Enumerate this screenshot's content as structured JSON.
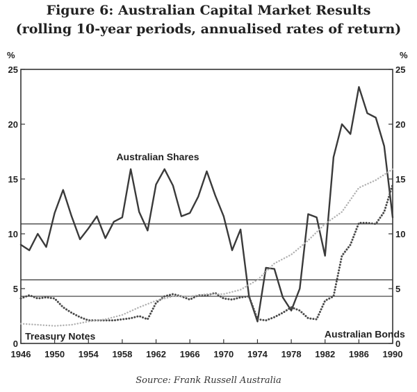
{
  "title": "Figure 6: Australian Capital Market Results",
  "subtitle": "(rolling 10-year periods, annualised rates of return)",
  "source": "Source: Frank Russell Australia",
  "chart_data": {
    "type": "line",
    "x_ticks": [
      "1946",
      "1950",
      "1954",
      "1958",
      "1962",
      "1966",
      "1970",
      "1974",
      "1978",
      "1982",
      "1986",
      "1990"
    ],
    "y_ticks": [
      "0",
      "5",
      "10",
      "15",
      "20",
      "25"
    ],
    "y_unit_left": "%",
    "y_unit_right": "%",
    "xlim": [
      1946,
      1990
    ],
    "ylim": [
      0,
      25
    ],
    "grid": false,
    "reference_lines": [
      10.9,
      5.8,
      4.3
    ],
    "annotations": [
      {
        "text": "Australian Shares",
        "x": 1962.2,
        "y": 16.7
      },
      {
        "text": "Australian Bonds",
        "x": 1986.7,
        "y": 0.55
      },
      {
        "text": "Treasury Notes",
        "x": 1946.5,
        "y": 0.35
      }
    ],
    "series": [
      {
        "name": "Australian Shares",
        "style": "solid",
        "color": "#3a3a3a",
        "x": [
          1946,
          1947,
          1948,
          1949,
          1950,
          1951,
          1952,
          1953,
          1954,
          1955,
          1956,
          1957,
          1958,
          1959,
          1960,
          1961,
          1962,
          1963,
          1964,
          1965,
          1966,
          1967,
          1968,
          1969,
          1970,
          1971,
          1972,
          1973,
          1974,
          1975,
          1976,
          1977,
          1978,
          1979,
          1980,
          1981,
          1982,
          1983,
          1984,
          1985,
          1986,
          1987,
          1988,
          1989,
          1990
        ],
        "values": [
          9.0,
          8.5,
          10.0,
          8.8,
          11.9,
          14.0,
          11.6,
          9.5,
          10.5,
          11.6,
          9.6,
          11.1,
          11.5,
          15.9,
          12.0,
          10.3,
          14.5,
          15.9,
          14.4,
          11.6,
          11.9,
          13.4,
          15.7,
          13.5,
          11.6,
          8.5,
          10.4,
          4.3,
          2.0,
          6.9,
          6.8,
          4.2,
          3.0,
          5.0,
          11.8,
          11.5,
          8.0,
          17.0,
          20.0,
          19.1,
          23.4,
          21.0,
          20.6,
          18.0,
          11.5
        ]
      },
      {
        "name": "Australian Bonds",
        "style": "dotted",
        "color": "#4a4a4a",
        "x": [
          1946,
          1947,
          1948,
          1949,
          1950,
          1951,
          1952,
          1953,
          1954,
          1955,
          1956,
          1957,
          1958,
          1959,
          1960,
          1961,
          1962,
          1963,
          1964,
          1965,
          1966,
          1967,
          1968,
          1969,
          1970,
          1971,
          1972,
          1973,
          1974,
          1975,
          1976,
          1977,
          1978,
          1979,
          1980,
          1981,
          1982,
          1983,
          1984,
          1985,
          1986,
          1987,
          1988,
          1989,
          1990
        ],
        "values": [
          4.1,
          4.4,
          4.1,
          4.2,
          4.1,
          3.3,
          2.8,
          2.4,
          2.1,
          2.1,
          2.1,
          2.1,
          2.2,
          2.3,
          2.5,
          2.2,
          3.7,
          4.3,
          4.5,
          4.3,
          4.0,
          4.4,
          4.4,
          4.6,
          4.1,
          4.0,
          4.2,
          4.3,
          2.2,
          2.1,
          2.4,
          2.8,
          3.3,
          3.0,
          2.3,
          2.2,
          3.9,
          4.3,
          8.0,
          9.0,
          11.0,
          11.0,
          10.9,
          12.0,
          14.5
        ]
      },
      {
        "name": "Treasury Notes",
        "style": "dotted",
        "color": "#b0b0b0",
        "x": [
          1946,
          1948,
          1950,
          1952,
          1954,
          1956,
          1958,
          1960,
          1962,
          1964,
          1966,
          1968,
          1970,
          1972,
          1974,
          1976,
          1978,
          1980,
          1982,
          1984,
          1986,
          1988,
          1990
        ],
        "values": [
          1.8,
          1.7,
          1.6,
          1.7,
          2.0,
          2.2,
          2.6,
          3.3,
          3.9,
          4.3,
          4.3,
          4.5,
          4.5,
          4.9,
          5.8,
          7.3,
          8.1,
          9.4,
          10.9,
          12.0,
          14.2,
          14.9,
          15.9
        ]
      }
    ]
  }
}
